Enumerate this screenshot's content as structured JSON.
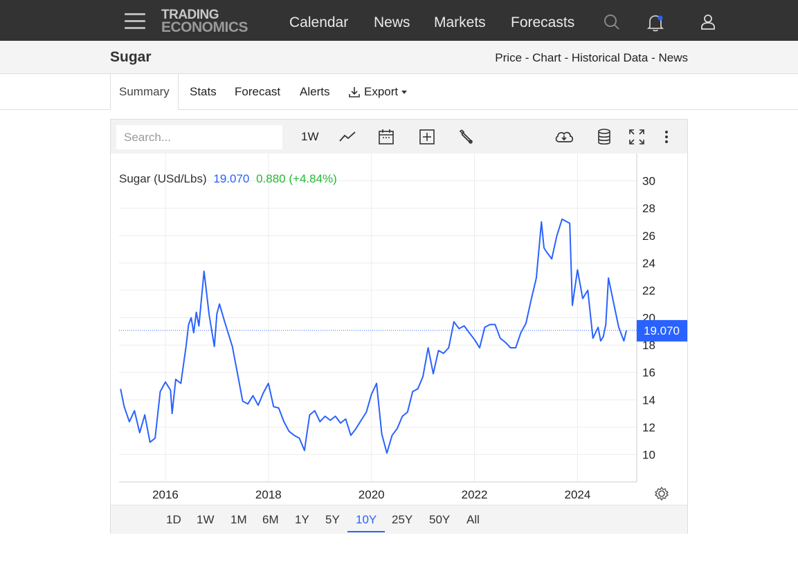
{
  "nav": {
    "logo_line1": "TRADING",
    "logo_line2": "ECONOMICS",
    "links": [
      "Calendar",
      "News",
      "Markets",
      "Forecasts"
    ]
  },
  "title": "Sugar",
  "breadcrumb": [
    "Price",
    "Chart",
    "Historical Data",
    "News"
  ],
  "breadcrumb_sep": " - ",
  "tabs": [
    "Summary",
    "Stats",
    "Forecast",
    "Alerts",
    "Export"
  ],
  "toolbar": {
    "search_placeholder": "Search...",
    "interval": "1W"
  },
  "legend": {
    "name": "Sugar (USd/Lbs)",
    "price": "19.070",
    "change": "0.880 (+4.84%)"
  },
  "ranges": [
    "1D",
    "1W",
    "1M",
    "6M",
    "1Y",
    "5Y",
    "10Y",
    "25Y",
    "50Y",
    "All"
  ],
  "active_range": "10Y",
  "colors": {
    "line": "#2962ff",
    "up": "#22bb33",
    "nav_bg": "#333333"
  },
  "icons": [
    "menu-icon",
    "search-icon",
    "bell-icon",
    "user-icon",
    "line-chart-icon",
    "calendar-icon",
    "add-compare-icon",
    "wrench-icon",
    "cloud-download-icon",
    "database-icon",
    "fullscreen-icon",
    "more-vertical-icon",
    "settings-gear-icon",
    "download-icon",
    "caret-down-icon"
  ],
  "chart_data": {
    "type": "line",
    "series": [
      {
        "name": "Sugar (USd/Lbs)",
        "points": [
          [
            2015.13,
            14.8
          ],
          [
            2015.2,
            13.5
          ],
          [
            2015.3,
            12.4
          ],
          [
            2015.4,
            13.2
          ],
          [
            2015.5,
            11.6
          ],
          [
            2015.6,
            12.9
          ],
          [
            2015.7,
            10.9
          ],
          [
            2015.8,
            11.2
          ],
          [
            2015.9,
            14.6
          ],
          [
            2016.0,
            15.3
          ],
          [
            2016.1,
            14.7
          ],
          [
            2016.13,
            13.0
          ],
          [
            2016.2,
            15.5
          ],
          [
            2016.3,
            15.2
          ],
          [
            2016.4,
            17.9
          ],
          [
            2016.45,
            19.5
          ],
          [
            2016.5,
            20.0
          ],
          [
            2016.55,
            18.9
          ],
          [
            2016.6,
            20.4
          ],
          [
            2016.65,
            19.4
          ],
          [
            2016.75,
            23.4
          ],
          [
            2016.85,
            20.2
          ],
          [
            2016.95,
            17.9
          ],
          [
            2017.0,
            20.3
          ],
          [
            2017.05,
            21.0
          ],
          [
            2017.15,
            19.7
          ],
          [
            2017.3,
            17.9
          ],
          [
            2017.4,
            15.9
          ],
          [
            2017.5,
            13.9
          ],
          [
            2017.6,
            13.7
          ],
          [
            2017.7,
            14.3
          ],
          [
            2017.8,
            13.6
          ],
          [
            2017.9,
            14.5
          ],
          [
            2018.0,
            15.2
          ],
          [
            2018.1,
            13.5
          ],
          [
            2018.2,
            13.4
          ],
          [
            2018.3,
            12.4
          ],
          [
            2018.4,
            11.7
          ],
          [
            2018.5,
            11.4
          ],
          [
            2018.6,
            11.2
          ],
          [
            2018.7,
            10.3
          ],
          [
            2018.8,
            12.9
          ],
          [
            2018.9,
            13.2
          ],
          [
            2019.0,
            12.4
          ],
          [
            2019.1,
            12.8
          ],
          [
            2019.2,
            12.5
          ],
          [
            2019.3,
            12.8
          ],
          [
            2019.4,
            12.3
          ],
          [
            2019.5,
            12.6
          ],
          [
            2019.6,
            11.4
          ],
          [
            2019.7,
            11.9
          ],
          [
            2019.8,
            12.5
          ],
          [
            2019.9,
            13.1
          ],
          [
            2020.0,
            14.4
          ],
          [
            2020.1,
            15.2
          ],
          [
            2020.2,
            11.5
          ],
          [
            2020.3,
            10.1
          ],
          [
            2020.4,
            11.4
          ],
          [
            2020.5,
            11.9
          ],
          [
            2020.6,
            12.8
          ],
          [
            2020.7,
            13.1
          ],
          [
            2020.8,
            14.6
          ],
          [
            2020.9,
            14.8
          ],
          [
            2021.0,
            15.7
          ],
          [
            2021.1,
            17.8
          ],
          [
            2021.2,
            15.9
          ],
          [
            2021.3,
            17.6
          ],
          [
            2021.4,
            17.4
          ],
          [
            2021.5,
            17.8
          ],
          [
            2021.6,
            19.7
          ],
          [
            2021.7,
            19.2
          ],
          [
            2021.8,
            19.4
          ],
          [
            2021.9,
            18.9
          ],
          [
            2022.0,
            18.4
          ],
          [
            2022.1,
            17.8
          ],
          [
            2022.2,
            19.3
          ],
          [
            2022.3,
            19.5
          ],
          [
            2022.4,
            19.5
          ],
          [
            2022.5,
            18.5
          ],
          [
            2022.6,
            18.2
          ],
          [
            2022.7,
            17.8
          ],
          [
            2022.8,
            17.8
          ],
          [
            2022.9,
            18.9
          ],
          [
            2023.0,
            19.6
          ],
          [
            2023.1,
            21.3
          ],
          [
            2023.2,
            22.9
          ],
          [
            2023.3,
            27.0
          ],
          [
            2023.35,
            25.1
          ],
          [
            2023.4,
            24.8
          ],
          [
            2023.5,
            24.3
          ],
          [
            2023.6,
            26.0
          ],
          [
            2023.7,
            27.2
          ],
          [
            2023.8,
            27.0
          ],
          [
            2023.85,
            26.9
          ],
          [
            2023.9,
            20.9
          ],
          [
            2024.0,
            23.5
          ],
          [
            2024.1,
            21.4
          ],
          [
            2024.2,
            22.0
          ],
          [
            2024.3,
            18.5
          ],
          [
            2024.4,
            19.3
          ],
          [
            2024.45,
            18.3
          ],
          [
            2024.5,
            18.6
          ],
          [
            2024.55,
            19.5
          ],
          [
            2024.6,
            22.9
          ],
          [
            2024.7,
            21.1
          ],
          [
            2024.8,
            19.3
          ],
          [
            2024.9,
            18.3
          ],
          [
            2024.95,
            19.07
          ]
        ]
      }
    ],
    "x_ticks": [
      "2016",
      "2018",
      "2020",
      "2022",
      "2024"
    ],
    "y_ticks": [
      10,
      12,
      14,
      16,
      18,
      20,
      22,
      24,
      26,
      28,
      30
    ],
    "xlim": [
      2015.1,
      2025.15
    ],
    "ylim": [
      8,
      32
    ],
    "last_price": "19.070",
    "grid": true
  }
}
